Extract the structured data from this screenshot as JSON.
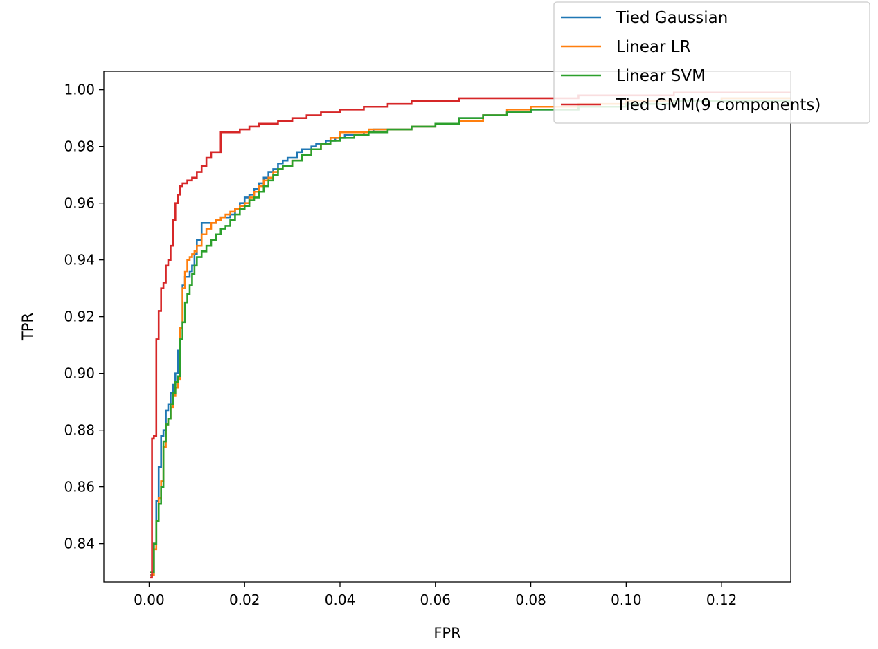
{
  "chart_data": {
    "type": "line",
    "xlabel": "FPR",
    "ylabel": "TPR",
    "xlim": [
      -0.0095,
      0.1345
    ],
    "ylim": [
      0.8265,
      1.0065
    ],
    "grid": false,
    "legend_position": "top-right",
    "x_ticks": [
      "0.00",
      "0.02",
      "0.04",
      "0.06",
      "0.08",
      "0.10",
      "0.12"
    ],
    "y_ticks": [
      "0.84",
      "0.86",
      "0.88",
      "0.90",
      "0.92",
      "0.94",
      "0.96",
      "0.98",
      "1.00"
    ],
    "series": [
      {
        "name": "Tied Gaussian",
        "color": "#1f77b4",
        "x": [
          0.0002,
          0.001,
          0.0015,
          0.002,
          0.0025,
          0.003,
          0.0035,
          0.004,
          0.0045,
          0.005,
          0.0055,
          0.006,
          0.0065,
          0.007,
          0.0075,
          0.008,
          0.0085,
          0.009,
          0.0095,
          0.01,
          0.011,
          0.0115,
          0.0125,
          0.014,
          0.015,
          0.016,
          0.017,
          0.018,
          0.019,
          0.02,
          0.021,
          0.022,
          0.023,
          0.024,
          0.025,
          0.026,
          0.027,
          0.028,
          0.029,
          0.031,
          0.032,
          0.034,
          0.035,
          0.037,
          0.039,
          0.041,
          0.043,
          0.045,
          0.047,
          0.05,
          0.055,
          0.06,
          0.065,
          0.07,
          0.075,
          0.08,
          0.09,
          0.1,
          0.11,
          0.12,
          0.1345
        ],
        "y": [
          0.829,
          0.84,
          0.855,
          0.867,
          0.878,
          0.88,
          0.887,
          0.889,
          0.893,
          0.896,
          0.9,
          0.908,
          0.916,
          0.931,
          0.934,
          0.934,
          0.936,
          0.938,
          0.942,
          0.947,
          0.953,
          0.953,
          0.953,
          0.954,
          0.955,
          0.955,
          0.956,
          0.958,
          0.96,
          0.962,
          0.963,
          0.965,
          0.967,
          0.969,
          0.971,
          0.972,
          0.974,
          0.975,
          0.976,
          0.978,
          0.979,
          0.98,
          0.981,
          0.982,
          0.983,
          0.984,
          0.984,
          0.985,
          0.986,
          0.986,
          0.987,
          0.988,
          0.99,
          0.991,
          0.992,
          0.993,
          0.994,
          0.995,
          0.996,
          0.997,
          0.997
        ]
      },
      {
        "name": "Linear LR",
        "color": "#ff7f0e",
        "x": [
          0.0003,
          0.001,
          0.0015,
          0.002,
          0.0025,
          0.003,
          0.0035,
          0.004,
          0.0045,
          0.005,
          0.0055,
          0.006,
          0.0065,
          0.007,
          0.0075,
          0.008,
          0.0085,
          0.009,
          0.0095,
          0.01,
          0.011,
          0.012,
          0.013,
          0.014,
          0.015,
          0.016,
          0.017,
          0.018,
          0.019,
          0.02,
          0.021,
          0.022,
          0.023,
          0.024,
          0.025,
          0.026,
          0.027,
          0.028,
          0.03,
          0.032,
          0.034,
          0.036,
          0.038,
          0.04,
          0.043,
          0.046,
          0.05,
          0.055,
          0.06,
          0.065,
          0.07,
          0.075,
          0.08,
          0.09,
          0.1,
          0.11,
          0.12,
          0.1345
        ],
        "y": [
          0.829,
          0.838,
          0.848,
          0.856,
          0.862,
          0.874,
          0.882,
          0.884,
          0.888,
          0.892,
          0.895,
          0.898,
          0.916,
          0.93,
          0.936,
          0.94,
          0.941,
          0.942,
          0.943,
          0.945,
          0.949,
          0.951,
          0.953,
          0.954,
          0.955,
          0.956,
          0.957,
          0.958,
          0.959,
          0.96,
          0.962,
          0.964,
          0.966,
          0.968,
          0.969,
          0.971,
          0.972,
          0.973,
          0.975,
          0.977,
          0.979,
          0.981,
          0.983,
          0.985,
          0.985,
          0.986,
          0.986,
          0.987,
          0.988,
          0.989,
          0.991,
          0.993,
          0.994,
          0.995,
          0.996,
          0.996,
          0.997,
          0.997
        ]
      },
      {
        "name": "Linear SVM",
        "color": "#2ca02c",
        "x": [
          0.0002,
          0.001,
          0.0015,
          0.002,
          0.0025,
          0.003,
          0.0035,
          0.004,
          0.0045,
          0.005,
          0.0055,
          0.006,
          0.0065,
          0.007,
          0.0075,
          0.008,
          0.0085,
          0.009,
          0.0095,
          0.01,
          0.011,
          0.012,
          0.013,
          0.014,
          0.015,
          0.016,
          0.017,
          0.018,
          0.019,
          0.02,
          0.021,
          0.022,
          0.023,
          0.024,
          0.025,
          0.026,
          0.027,
          0.028,
          0.03,
          0.032,
          0.034,
          0.036,
          0.038,
          0.04,
          0.043,
          0.046,
          0.05,
          0.055,
          0.06,
          0.065,
          0.07,
          0.075,
          0.08,
          0.09,
          0.1,
          0.11,
          0.12,
          0.1345
        ],
        "y": [
          0.83,
          0.84,
          0.848,
          0.854,
          0.86,
          0.876,
          0.882,
          0.884,
          0.889,
          0.893,
          0.897,
          0.899,
          0.912,
          0.918,
          0.925,
          0.928,
          0.931,
          0.935,
          0.938,
          0.941,
          0.943,
          0.945,
          0.947,
          0.949,
          0.951,
          0.952,
          0.954,
          0.956,
          0.958,
          0.959,
          0.961,
          0.962,
          0.964,
          0.966,
          0.968,
          0.97,
          0.972,
          0.973,
          0.975,
          0.977,
          0.979,
          0.981,
          0.982,
          0.983,
          0.984,
          0.985,
          0.986,
          0.987,
          0.988,
          0.99,
          0.991,
          0.992,
          0.993,
          0.994,
          0.995,
          0.996,
          0.996,
          0.996
        ]
      },
      {
        "name": "Tied GMM(9 components)",
        "color": "#d62728",
        "x": [
          0.0002,
          0.0006,
          0.001,
          0.0015,
          0.002,
          0.0025,
          0.003,
          0.0035,
          0.004,
          0.0045,
          0.005,
          0.0055,
          0.006,
          0.0065,
          0.007,
          0.008,
          0.009,
          0.01,
          0.011,
          0.012,
          0.013,
          0.014,
          0.015,
          0.017,
          0.019,
          0.021,
          0.023,
          0.025,
          0.027,
          0.03,
          0.033,
          0.036,
          0.04,
          0.045,
          0.05,
          0.055,
          0.06,
          0.065,
          0.07,
          0.08,
          0.09,
          0.1,
          0.11,
          0.12,
          0.1345
        ],
        "y": [
          0.828,
          0.877,
          0.878,
          0.912,
          0.922,
          0.93,
          0.932,
          0.938,
          0.94,
          0.945,
          0.954,
          0.96,
          0.963,
          0.966,
          0.967,
          0.968,
          0.969,
          0.971,
          0.973,
          0.976,
          0.978,
          0.978,
          0.985,
          0.985,
          0.986,
          0.987,
          0.988,
          0.988,
          0.989,
          0.99,
          0.991,
          0.992,
          0.993,
          0.994,
          0.995,
          0.996,
          0.996,
          0.997,
          0.997,
          0.997,
          0.998,
          0.998,
          0.999,
          0.999,
          0.999
        ]
      }
    ]
  }
}
